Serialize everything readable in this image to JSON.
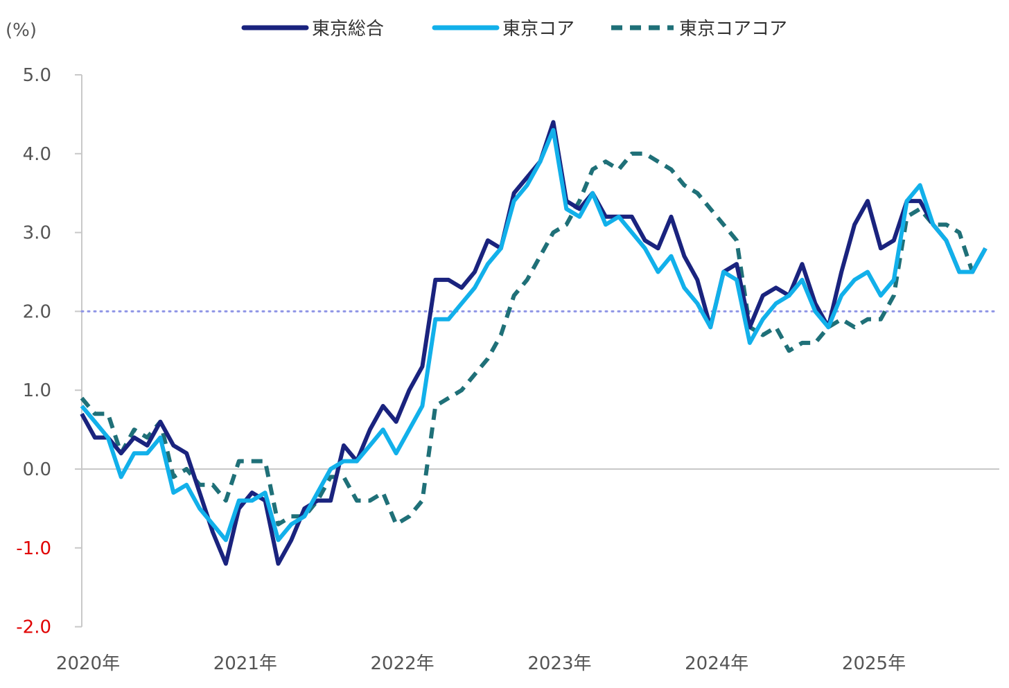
{
  "chart_data": {
    "type": "line",
    "y_unit": "(%)",
    "ylim": [
      -2.0,
      5.0
    ],
    "y_ticks": [
      "5.0",
      "4.0",
      "3.0",
      "2.0",
      "1.0",
      "0.0",
      "-1.0",
      "-2.0"
    ],
    "y_tick_values": [
      5,
      4,
      3,
      2,
      1,
      0,
      -1,
      -2
    ],
    "negative_tick_color": "#e00000",
    "x_tick_labels": [
      "2020年",
      "2021年",
      "2022年",
      "2023年",
      "2024年",
      "2025年"
    ],
    "x_start": "2020-01",
    "months": 70,
    "reference_line": {
      "value": 2.0,
      "style": "dotted",
      "color": "#8f95e6"
    },
    "grid": false,
    "legend_position": "top",
    "series": [
      {
        "name": "東京総合",
        "color": "#1a237e",
        "dash": "solid",
        "values": [
          0.7,
          0.4,
          0.4,
          0.2,
          0.4,
          0.3,
          0.6,
          0.3,
          0.2,
          -0.3,
          -0.8,
          -1.2,
          -0.5,
          -0.3,
          -0.4,
          -1.2,
          -0.9,
          -0.5,
          -0.4,
          -0.4,
          0.3,
          0.1,
          0.5,
          0.8,
          0.6,
          1.0,
          1.3,
          2.4,
          2.4,
          2.3,
          2.5,
          2.9,
          2.8,
          3.5,
          3.7,
          3.9,
          4.4,
          3.4,
          3.3,
          3.5,
          3.2,
          3.2,
          3.2,
          2.9,
          2.8,
          3.2,
          2.7,
          2.4,
          1.8,
          2.5,
          2.6,
          1.8,
          2.2,
          2.3,
          2.2,
          2.6,
          2.1,
          1.8,
          2.5,
          3.1,
          3.4,
          2.8,
          2.9,
          3.4,
          3.4,
          3.1,
          2.9,
          2.5,
          2.5,
          2.8
        ]
      },
      {
        "name": "東京コア",
        "color": "#12b0ea",
        "dash": "solid",
        "values": [
          0.8,
          0.6,
          0.4,
          -0.1,
          0.2,
          0.2,
          0.4,
          -0.3,
          -0.2,
          -0.5,
          -0.7,
          -0.9,
          -0.4,
          -0.4,
          -0.3,
          -0.9,
          -0.7,
          -0.6,
          -0.3,
          0.0,
          0.1,
          0.1,
          0.3,
          0.5,
          0.2,
          0.5,
          0.8,
          1.9,
          1.9,
          2.1,
          2.3,
          2.6,
          2.8,
          3.4,
          3.6,
          3.9,
          4.3,
          3.3,
          3.2,
          3.5,
          3.1,
          3.2,
          3.0,
          2.8,
          2.5,
          2.7,
          2.3,
          2.1,
          1.8,
          2.5,
          2.4,
          1.6,
          1.9,
          2.1,
          2.2,
          2.4,
          2.0,
          1.8,
          2.2,
          2.4,
          2.5,
          2.2,
          2.4,
          3.4,
          3.6,
          3.1,
          2.9,
          2.5,
          2.5,
          2.8
        ]
      },
      {
        "name": "東京コアコア",
        "color": "#1f7078",
        "dash": "dashed",
        "values": [
          0.9,
          0.7,
          0.7,
          0.2,
          0.5,
          0.4,
          0.6,
          -0.1,
          0.0,
          -0.2,
          -0.2,
          -0.4,
          0.1,
          0.1,
          0.1,
          -0.7,
          -0.6,
          -0.6,
          -0.4,
          -0.1,
          -0.1,
          -0.4,
          -0.4,
          -0.3,
          -0.7,
          -0.6,
          -0.4,
          0.8,
          0.9,
          1.0,
          1.2,
          1.4,
          1.7,
          2.2,
          2.4,
          2.7,
          3.0,
          3.1,
          3.4,
          3.8,
          3.9,
          3.8,
          4.0,
          4.0,
          3.9,
          3.8,
          3.6,
          3.5,
          3.3,
          3.1,
          2.9,
          1.8,
          1.7,
          1.8,
          1.5,
          1.6,
          1.6,
          1.8,
          1.9,
          1.8,
          1.9,
          1.9,
          2.2,
          3.2,
          3.3,
          3.1,
          3.1,
          3.0,
          2.5,
          2.8
        ]
      }
    ]
  }
}
